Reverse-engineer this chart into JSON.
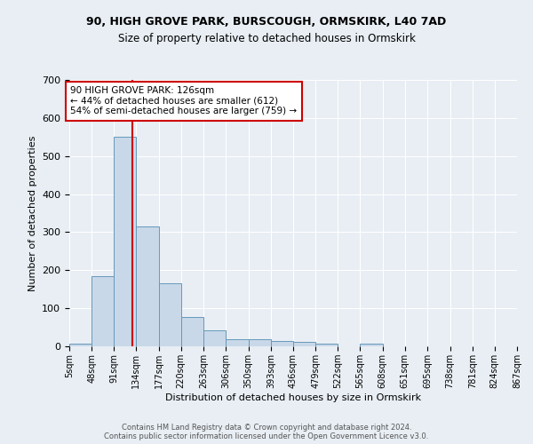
{
  "title_line1": "90, HIGH GROVE PARK, BURSCOUGH, ORMSKIRK, L40 7AD",
  "title_line2": "Size of property relative to detached houses in Ormskirk",
  "xlabel": "Distribution of detached houses by size in Ormskirk",
  "ylabel": "Number of detached properties",
  "bin_edges": [
    5,
    48,
    91,
    134,
    177,
    220,
    263,
    306,
    350,
    393,
    436,
    479,
    522,
    565,
    608,
    651,
    695,
    738,
    781,
    824,
    867
  ],
  "bar_heights": [
    8,
    185,
    550,
    315,
    165,
    78,
    43,
    18,
    18,
    13,
    12,
    8,
    0,
    7,
    0,
    0,
    0,
    0,
    0,
    0
  ],
  "bar_color": "#c8d8e8",
  "bar_edge_color": "#6699bb",
  "red_line_x": 126,
  "annotation_text": "90 HIGH GROVE PARK: 126sqm\n← 44% of detached houses are smaller (612)\n54% of semi-detached houses are larger (759) →",
  "annotation_box_color": "#ffffff",
  "annotation_box_edge_color": "#cc0000",
  "annotation_text_color": "#000000",
  "red_line_color": "#cc0000",
  "background_color": "#e8eef4",
  "grid_color": "#ffffff",
  "ylim": [
    0,
    700
  ],
  "yticks": [
    0,
    100,
    200,
    300,
    400,
    500,
    600,
    700
  ],
  "footer_line1": "Contains HM Land Registry data © Crown copyright and database right 2024.",
  "footer_line2": "Contains public sector information licensed under the Open Government Licence v3.0."
}
